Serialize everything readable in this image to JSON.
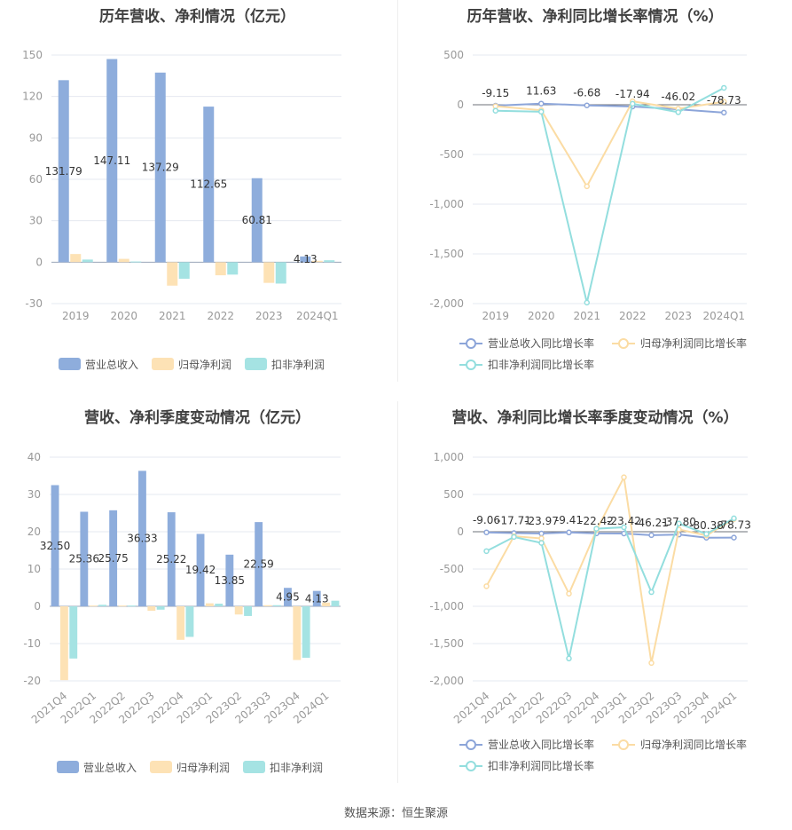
{
  "footer": "数据来源：恒生聚源",
  "colors": {
    "revenue": "#8eaddc",
    "net_profit": "#fde2b5",
    "deducted_profit": "#a5e3e3",
    "rev_growth_line": "#8ca5d9",
    "np_growth_line": "#fbdca4",
    "dp_growth_line": "#93dede",
    "axis_text": "#999999",
    "label_text": "#333333",
    "grid": "#e4e8f0"
  },
  "chart_data": [
    {
      "type": "bar",
      "title": "历年营收、净利情况（亿元）",
      "categories": [
        "2019",
        "2020",
        "2021",
        "2022",
        "2023",
        "2024Q1"
      ],
      "ylim": [
        -30,
        150
      ],
      "yticks": [
        -30,
        0,
        30,
        60,
        90,
        120,
        150
      ],
      "series": [
        {
          "name": "营业总收入",
          "values": [
            131.79,
            147.11,
            137.29,
            112.65,
            60.81,
            4.13
          ],
          "labels": [
            "131.79",
            "147.11",
            "137.29",
            "112.65",
            "60.81",
            "4.13"
          ]
        },
        {
          "name": "归母净利润",
          "values": [
            5.9,
            2.4,
            -17.0,
            -9.5,
            -15.0,
            1.0
          ]
        },
        {
          "name": "扣非净利润",
          "values": [
            1.9,
            0.5,
            -12.0,
            -9.0,
            -15.5,
            1.4
          ]
        }
      ],
      "legend": "bottom"
    },
    {
      "type": "line",
      "title": "历年营收、净利同比增长率情况（%）",
      "categories": [
        "2019",
        "2020",
        "2021",
        "2022",
        "2023",
        "2024Q1"
      ],
      "ylim": [
        -2000,
        500
      ],
      "yticks": [
        -2000,
        -1500,
        -1000,
        -500,
        0,
        500
      ],
      "ytick_labels": [
        "-2,000",
        "-1,500",
        "-1,000",
        "-500",
        "0",
        "500"
      ],
      "series": [
        {
          "name": "营业总收入同比增长率",
          "values": [
            -9.15,
            11.63,
            -6.68,
            -17.94,
            -46.02,
            -78.73
          ],
          "labels": [
            "-9.15",
            "11.63",
            "-6.68",
            "-17.94",
            "-46.02",
            "-78.73"
          ]
        },
        {
          "name": "归母净利润同比增长率",
          "values": [
            -15,
            -55,
            -820,
            35,
            -40,
            30
          ]
        },
        {
          "name": "扣非净利润同比增长率",
          "values": [
            -60,
            -70,
            -1990,
            10,
            -75,
            170
          ]
        }
      ],
      "legend": "bottom"
    },
    {
      "type": "bar",
      "title": "营收、净利季度变动情况（亿元）",
      "categories": [
        "2021Q4",
        "2022Q1",
        "2022Q2",
        "2022Q3",
        "2022Q4",
        "2023Q1",
        "2023Q2",
        "2023Q3",
        "2023Q4",
        "2024Q1"
      ],
      "ylim": [
        -20,
        40
      ],
      "yticks": [
        -20,
        -10,
        0,
        10,
        20,
        30,
        40
      ],
      "series": [
        {
          "name": "营业总收入",
          "values": [
            32.5,
            25.36,
            25.75,
            36.33,
            25.22,
            19.42,
            13.85,
            22.59,
            4.95,
            4.13
          ],
          "labels": [
            "32.50",
            "25.36",
            "25.75",
            "36.33",
            "25.22",
            "19.42",
            "13.85",
            "22.59",
            "4.95",
            "4.13"
          ]
        },
        {
          "name": "归母净利润",
          "values": [
            -19.8,
            0.2,
            0.2,
            -1.2,
            -9.0,
            0.8,
            -2.2,
            0.3,
            -14.4,
            1.0
          ]
        },
        {
          "name": "扣非净利润",
          "values": [
            -14.0,
            0.4,
            0.2,
            -0.9,
            -8.2,
            0.7,
            -2.6,
            0.3,
            -13.8,
            1.5
          ]
        }
      ],
      "legend": "bottom"
    },
    {
      "type": "line",
      "title": "营收、净利同比增长率季度变动情况（%）",
      "categories": [
        "2021Q4",
        "2022Q1",
        "2022Q2",
        "2022Q3",
        "2022Q4",
        "2023Q1",
        "2023Q2",
        "2023Q3",
        "2023Q4",
        "2024Q1"
      ],
      "ylim": [
        -2000,
        1000
      ],
      "yticks": [
        -2000,
        -1500,
        -1000,
        -500,
        0,
        500,
        1000
      ],
      "ytick_labels": [
        "-2,000",
        "-1,500",
        "-1,000",
        "-500",
        "0",
        "500",
        "1,000"
      ],
      "series": [
        {
          "name": "营业总收入同比增长率",
          "values": [
            -9.06,
            -17.71,
            -23.97,
            -9.41,
            -22.42,
            -23.42,
            -46.21,
            -37.8,
            -80.38,
            -78.73
          ],
          "labels": [
            "-9.06",
            "-17.71",
            "-23.97",
            "-9.41",
            "-22.42",
            "-23.42",
            "-46.21",
            "-37.80",
            "-80.38",
            "-78.73"
          ]
        },
        {
          "name": "归母净利润同比增长率",
          "values": [
            -730,
            -60,
            -90,
            -830,
            20,
            730,
            -1760,
            30,
            -50,
            170
          ]
        },
        {
          "name": "扣非净利润同比增长率",
          "values": [
            -260,
            -70,
            -150,
            -1700,
            40,
            60,
            -810,
            110,
            -30,
            180
          ]
        }
      ],
      "legend": "bottom"
    }
  ]
}
